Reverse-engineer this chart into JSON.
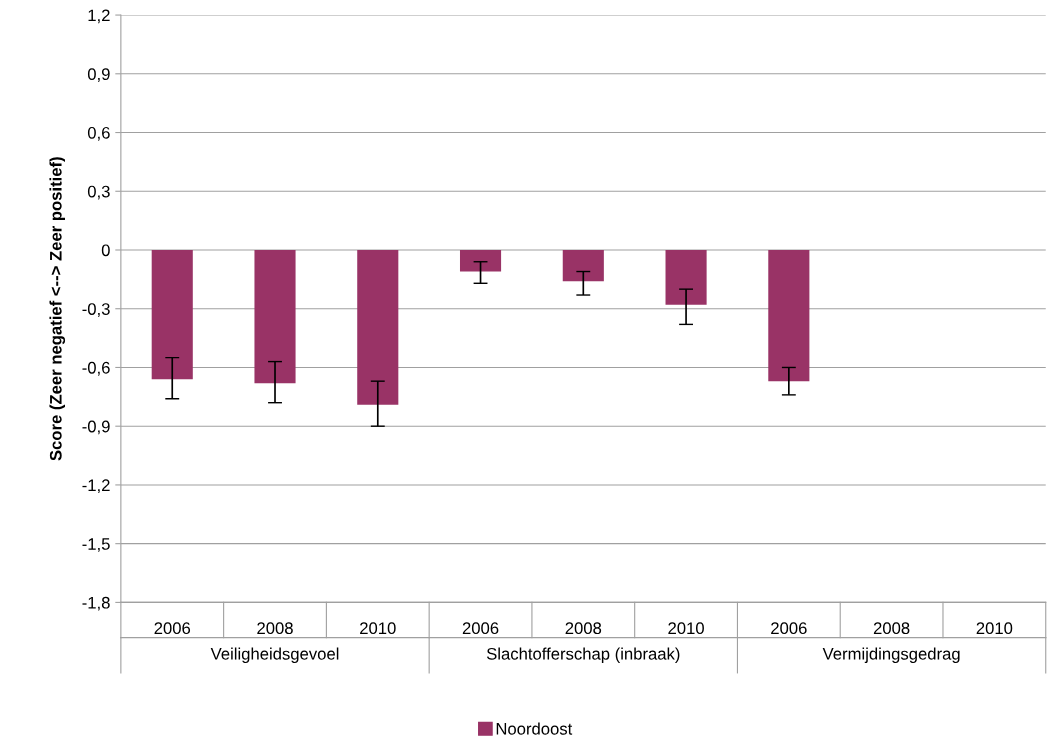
{
  "chart_data": {
    "type": "bar",
    "ylabel": "Score (Zeer negatief <--> Zeer positief)",
    "categories": [
      "2006",
      "2008",
      "2010",
      "2006",
      "2008",
      "2010",
      "2006",
      "2008",
      "2010"
    ],
    "series": [
      {
        "name": "Noordoost",
        "color": "#993366",
        "values": [
          -0.66,
          -0.68,
          -0.79,
          -0.11,
          -0.16,
          -0.28,
          -0.67,
          null,
          null
        ],
        "errors": [
          [
            -0.76,
            -0.55
          ],
          [
            -0.78,
            -0.57
          ],
          [
            -0.9,
            -0.67
          ],
          [
            -0.17,
            -0.06
          ],
          [
            -0.23,
            -0.11
          ],
          [
            -0.38,
            -0.2
          ],
          [
            -0.74,
            -0.6
          ],
          null,
          null
        ]
      }
    ],
    "annotations": [
      "Veiligheidsgevoel",
      "Slachtofferschap (inbraak)",
      "Vermijdingsgedrag"
    ],
    "ylim": [
      -1.8,
      1.2
    ],
    "yticks": [
      {
        "value": -1.8,
        "label": "-1,8"
      },
      {
        "value": -1.5,
        "label": "-1,5"
      },
      {
        "value": -1.2,
        "label": "-1,2"
      },
      {
        "value": -0.9,
        "label": "-0,9"
      },
      {
        "value": -0.6,
        "label": "-0,6"
      },
      {
        "value": -0.3,
        "label": "-0,3"
      },
      0,
      {
        "value": 0.3,
        "label": "0,3"
      },
      {
        "value": 0.6,
        "label": "0,6"
      },
      {
        "value": 0.9,
        "label": "0,9"
      },
      {
        "value": 1.2,
        "label": "1,2"
      }
    ],
    "grid": "y",
    "legend": "bottom"
  }
}
